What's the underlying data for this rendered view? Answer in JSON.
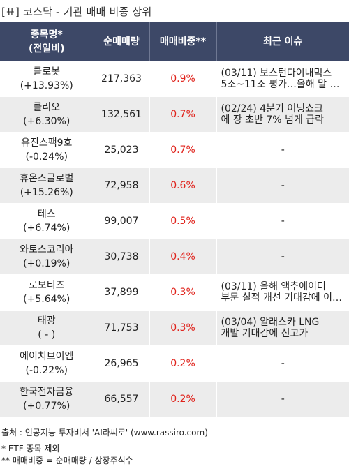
{
  "title": "[표] 코스닥 - 기관 매매 비중 상위",
  "headers": {
    "name_line1": "종목명*",
    "name_line2": "(전일비)",
    "volume": "순매매량",
    "ratio": "매매비중**",
    "issue": "최근 이슈"
  },
  "rows": [
    {
      "name": "클로봇",
      "change": "(+13.93%)",
      "volume": "217,363",
      "ratio": "0.9%",
      "issue1": "(03/11) 보스턴다이내믹스",
      "issue2": "5조~11조 평가…올해 말 …"
    },
    {
      "name": "클리오",
      "change": "(+6.30%)",
      "volume": "132,561",
      "ratio": "0.7%",
      "issue1": "(02/24) 4분기 어닝쇼크",
      "issue2": "에 장 초반 7% 넘게 급락"
    },
    {
      "name": "유진스팩9호",
      "change": "(-0.24%)",
      "volume": "25,023",
      "ratio": "0.7%",
      "issue1": "-",
      "issue2": ""
    },
    {
      "name": "휴온스글로벌",
      "change": "(+15.26%)",
      "volume": "72,958",
      "ratio": "0.6%",
      "issue1": "-",
      "issue2": ""
    },
    {
      "name": "테스",
      "change": "(+6.74%)",
      "volume": "99,007",
      "ratio": "0.5%",
      "issue1": "-",
      "issue2": ""
    },
    {
      "name": "와토스코리아",
      "change": "(+0.19%)",
      "volume": "30,738",
      "ratio": "0.4%",
      "issue1": "-",
      "issue2": ""
    },
    {
      "name": "로보티즈",
      "change": "(+5.64%)",
      "volume": "37,899",
      "ratio": "0.3%",
      "issue1": "(03/11) 올해 액추에이터",
      "issue2": "부문 실적 개선 기대감에 이…"
    },
    {
      "name": "태광",
      "change": "( - )",
      "volume": "71,753",
      "ratio": "0.3%",
      "issue1": "(03/04) 알래스카 LNG",
      "issue2": "개발 기대감에 신고가"
    },
    {
      "name": "에이치브이엠",
      "change": "(-0.22%)",
      "volume": "26,965",
      "ratio": "0.2%",
      "issue1": "-",
      "issue2": ""
    },
    {
      "name": "한국전자금융",
      "change": "(+0.77%)",
      "volume": "66,557",
      "ratio": "0.2%",
      "issue1": "-",
      "issue2": ""
    }
  ],
  "footer": {
    "source": "출처 : 인공지능 투자비서 'AI라씨로' (www.rassiro.com)",
    "note1": "* ETF 종목 제외",
    "note2": "** 매매비중 = 순매매량 / 상장주식수"
  },
  "colors": {
    "header_bg": "#3d4867",
    "ratio_text": "#e0221b",
    "stripe_bg": "#ececec"
  }
}
